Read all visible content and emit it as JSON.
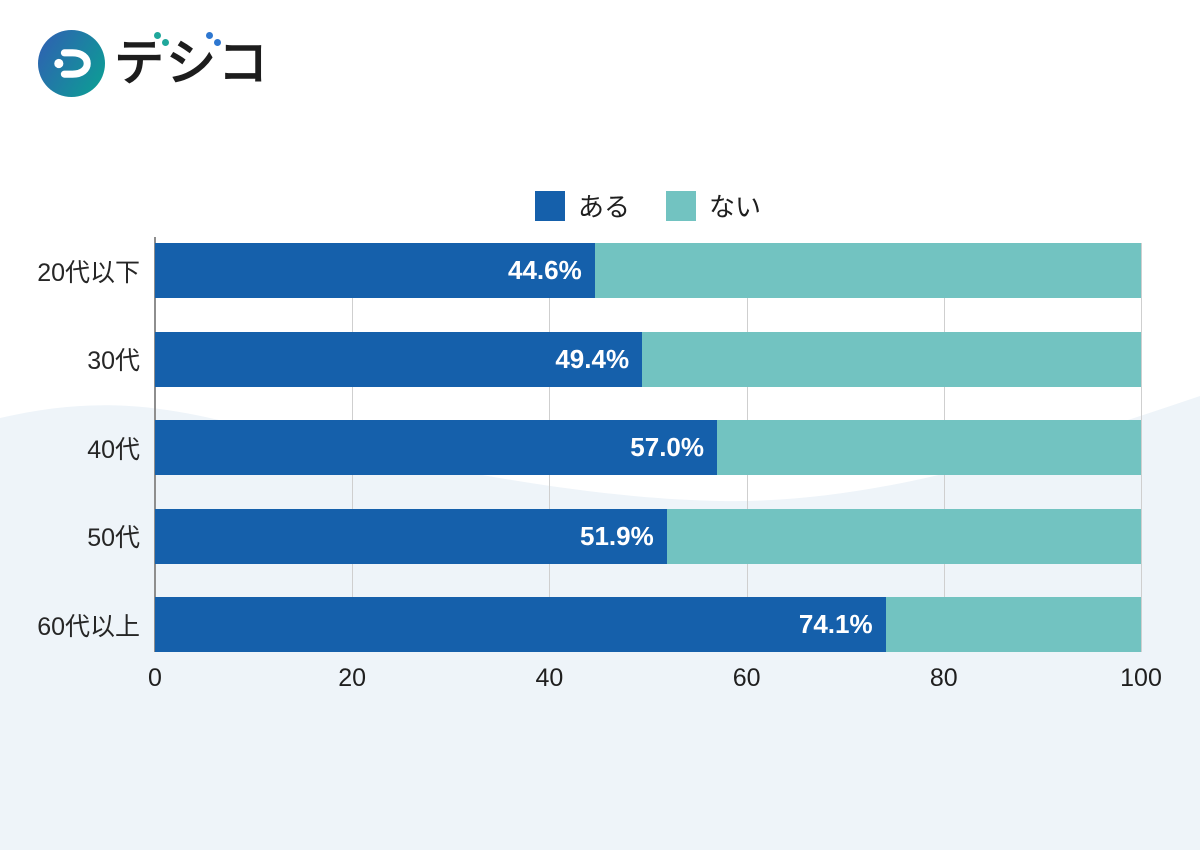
{
  "logo": {
    "text": "デジコ",
    "base_chars": [
      "テ",
      "シ",
      "コ"
    ],
    "d_letter": "D"
  },
  "colors": {
    "aru_blue": "#1560AB",
    "nai_teal": "#72C3C1",
    "wave_bg": "#EEF4F9",
    "gridline": "#CFCFCF",
    "axis": "#8E8E8E",
    "logo_gradient_blue": "#2E62B1",
    "logo_gradient_teal": "#0D9D95",
    "dakuten_teal": "#1FA79B",
    "dakuten_blue": "#2E77D0"
  },
  "legend": {
    "items": [
      {
        "label": "ある",
        "color": "#1560AB"
      },
      {
        "label": "ない",
        "color": "#72C3C1"
      }
    ]
  },
  "chart_data": {
    "type": "bar",
    "orientation": "horizontal",
    "stacked": true,
    "title": "",
    "categories": [
      "20代以下",
      "30代",
      "40代",
      "50代",
      "60代以上"
    ],
    "series": [
      {
        "name": "ある",
        "color": "#1560AB",
        "values": [
          44.6,
          49.4,
          57.0,
          51.9,
          74.1
        ],
        "labels": [
          "44.6%",
          "49.4%",
          "57.0%",
          "51.9%",
          "74.1%"
        ]
      },
      {
        "name": "ない",
        "color": "#72C3C1",
        "values": [
          55.4,
          50.6,
          43.0,
          48.1,
          25.9
        ],
        "labels": []
      }
    ],
    "xlim": [
      0,
      100
    ],
    "xticks": [
      0,
      20,
      40,
      60,
      80,
      100
    ],
    "grid": true,
    "legend_position": "top"
  }
}
